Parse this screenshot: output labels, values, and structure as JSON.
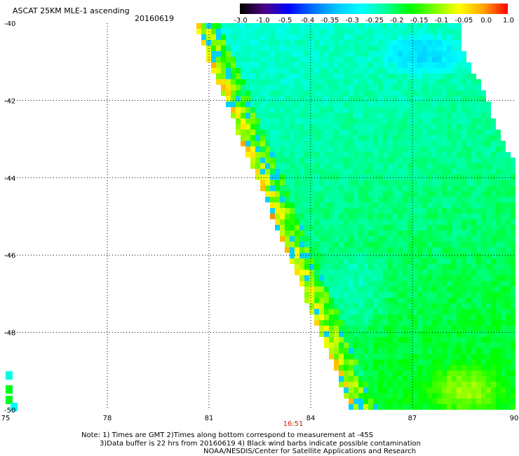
{
  "header": {
    "title": "ASCAT 25KM MLE-1 ascending",
    "date": "20160619"
  },
  "colorbar": {
    "labels": [
      "-3.0",
      "-1.0",
      "-0.5",
      "-0.4",
      "-0.35",
      "-0.3",
      "-0.25",
      "-0.2",
      "-0.15",
      "-0.1",
      "-0.05",
      "0.0",
      "1.0"
    ],
    "colors": [
      "#000000",
      "#4b0082",
      "#0000ff",
      "#0070ff",
      "#00c8ff",
      "#00ffff",
      "#00ff96",
      "#00ff00",
      "#7cff00",
      "#ffff00",
      "#ffa500",
      "#ff0000"
    ]
  },
  "map": {
    "x_range": [
      75,
      90
    ],
    "y_range": [
      -50,
      -40
    ],
    "x_ticks": [
      "75",
      "78",
      "81",
      "84",
      "87",
      "90"
    ],
    "y_ticks": [
      "-40",
      "-42",
      "-44",
      "-46",
      "-48",
      "-50"
    ],
    "pass_time": "16:51"
  },
  "notes": {
    "line1": "Note: 1) Times are GMT 2)Times along bottom correspond to measurement at -45S",
    "line2": "3)Data buffer is 22 hrs from 20160619 4) Black wind barbs indicate possible contamination",
    "line3": "NOAA/NESDIS/Center for Satellite Applications and Research"
  }
}
